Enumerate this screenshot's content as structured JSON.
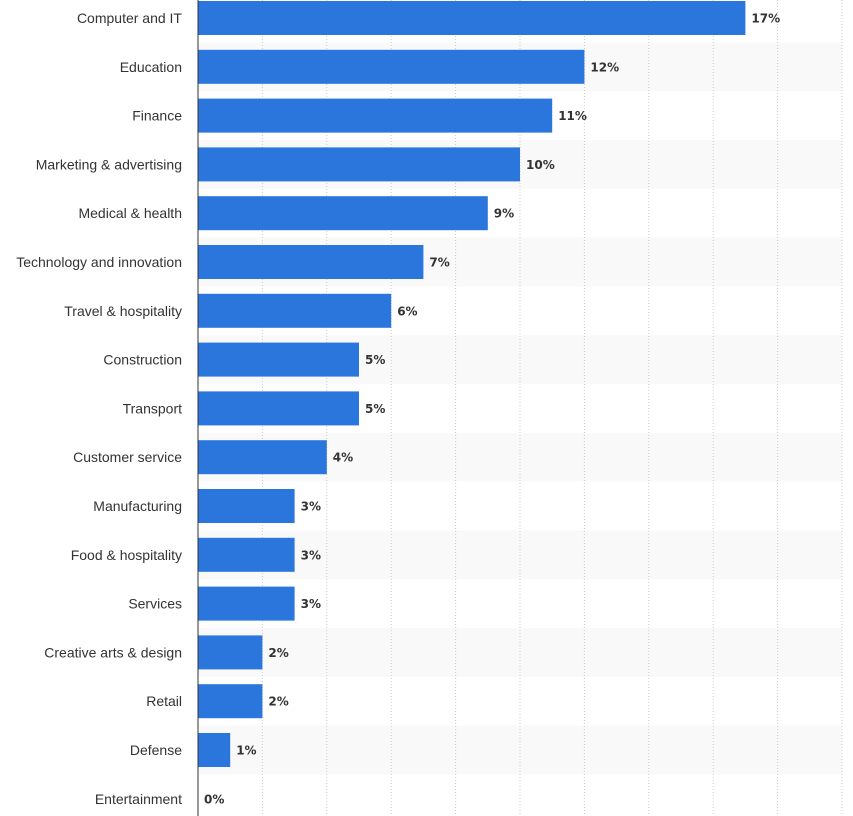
{
  "chart_data": {
    "type": "bar",
    "orientation": "horizontal",
    "categories": [
      "Computer and IT",
      "Education",
      "Finance",
      "Marketing & advertising",
      "Medical & health",
      "Technology and innovation",
      "Travel & hospitality",
      "Construction",
      "Transport",
      "Customer service",
      "Manufacturing",
      "Food & hospitality",
      "Services",
      "Creative arts & design",
      "Retail",
      "Defense",
      "Entertainment"
    ],
    "values": [
      17,
      12,
      11,
      10,
      9,
      7,
      6,
      5,
      5,
      4,
      3,
      3,
      3,
      2,
      2,
      1,
      0
    ],
    "value_labels": [
      "17%",
      "12%",
      "11%",
      "10%",
      "9%",
      "7%",
      "6%",
      "5%",
      "5%",
      "4%",
      "3%",
      "3%",
      "3%",
      "2%",
      "2%",
      "1%",
      "0%"
    ],
    "unit": "%",
    "xlim": [
      0,
      20
    ],
    "grid": true,
    "bar_color": "#2a76dd",
    "label_color": "#333333",
    "band_color": "#f9f9f9",
    "grid_color": "#cccccc",
    "axis_color": "#333333"
  }
}
